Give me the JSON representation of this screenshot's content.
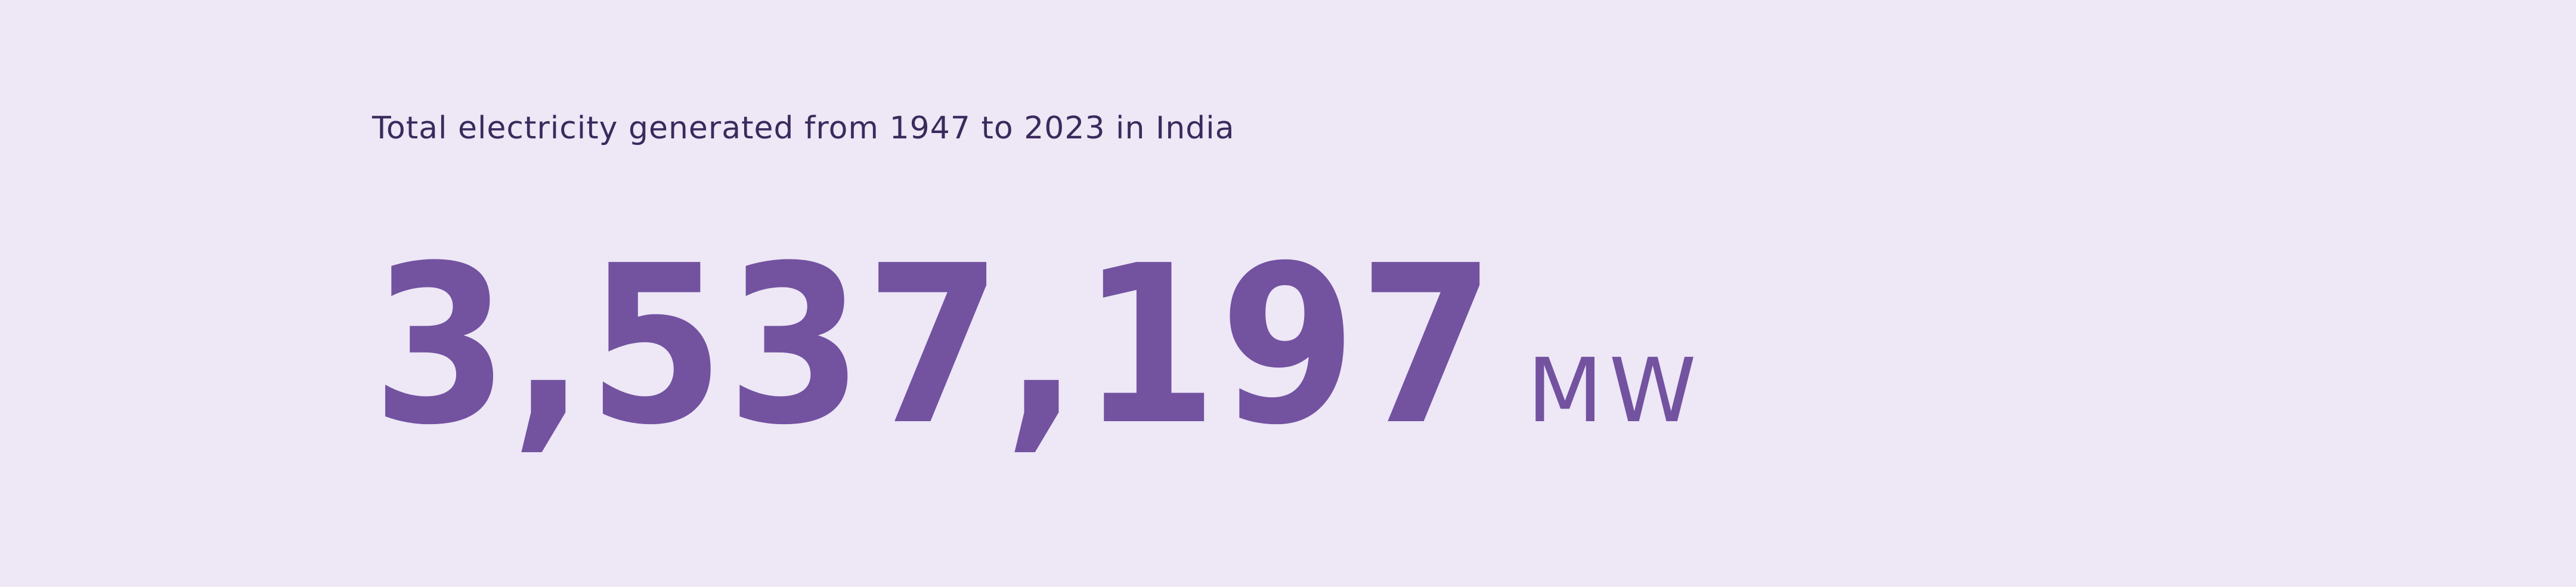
{
  "stat": {
    "label": "Total electricity generated from 1947 to 2023 in India",
    "value": "3,537,197",
    "unit": "MW"
  },
  "colors": {
    "background": "#EDE7F6",
    "accent": "#7352A0",
    "label_text": "#3A2A5C"
  }
}
